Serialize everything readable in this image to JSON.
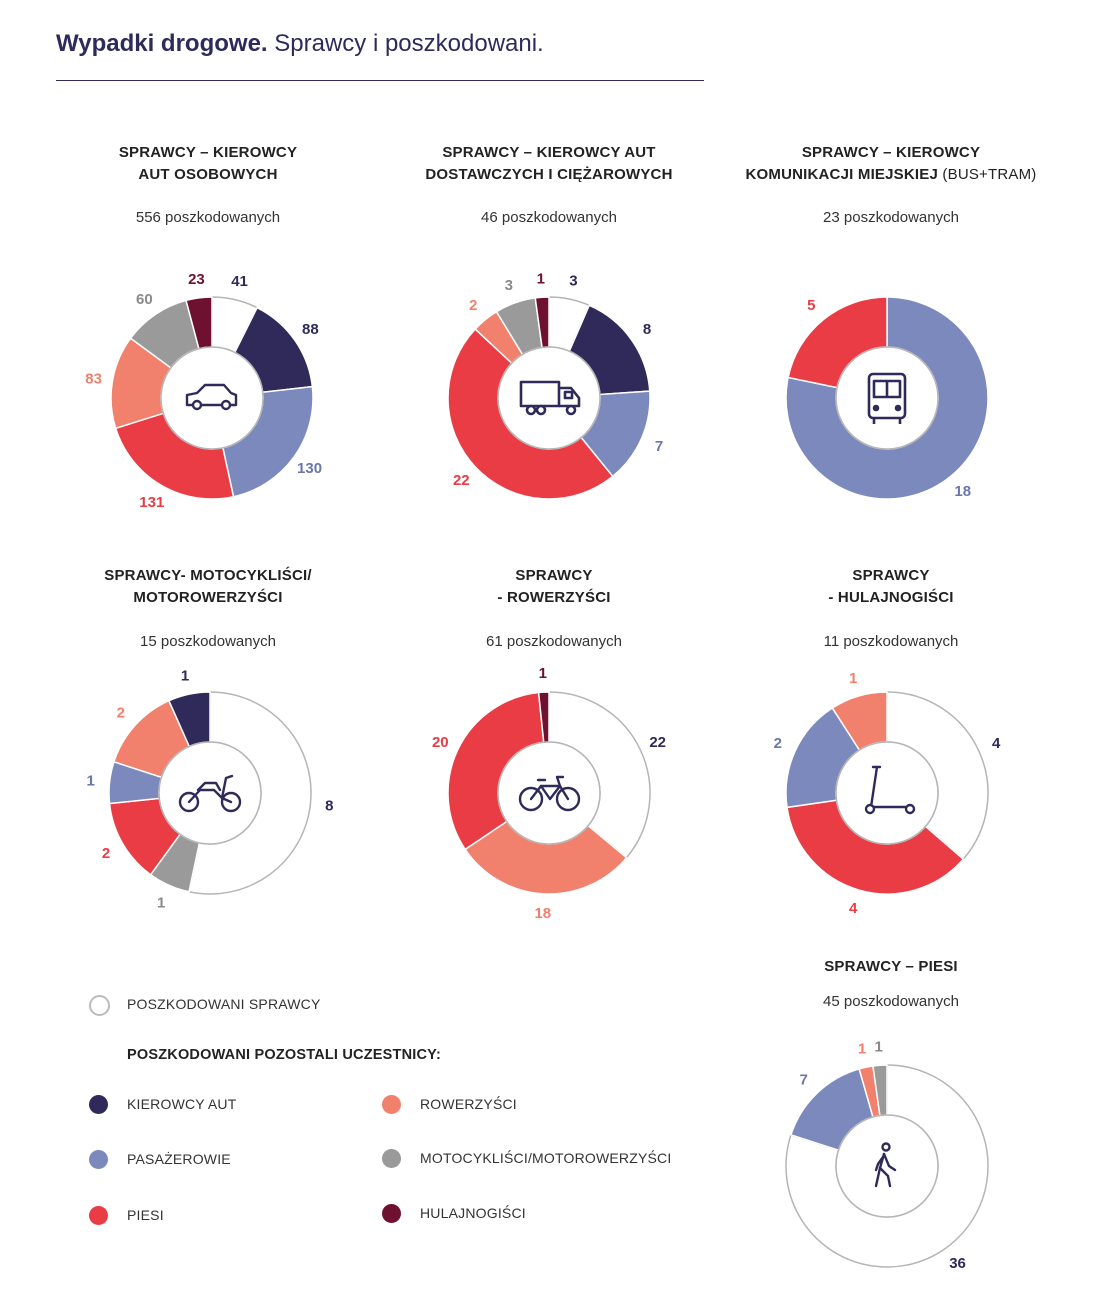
{
  "header": {
    "title_bold": "Wypadki drogowe.",
    "title_rest": " Sprawcy i poszkodowani."
  },
  "colors": {
    "sprawcy": "#ffffff",
    "kierowcy": "#2f2a59",
    "pasazerowie": "#7c89bd",
    "piesi": "#e93c45",
    "rowerzysci": "#f1806c",
    "motocyklisci": "#9a9a9b",
    "hulajnogisci": "#6e1030"
  },
  "chart_data": [
    {
      "type": "pie",
      "title_lines": [
        "SPRAWCY – KIEROWCY",
        "AUT OSOBOWYCH"
      ],
      "subtitle": "556 poszkodowanych",
      "icon": "car-icon",
      "slices": [
        {
          "category": "sprawcy",
          "value": 41
        },
        {
          "category": "kierowcy",
          "value": 88
        },
        {
          "category": "pasazerowie",
          "value": 130
        },
        {
          "category": "piesi",
          "value": 131
        },
        {
          "category": "rowerzysci",
          "value": 83
        },
        {
          "category": "motocyklisci",
          "value": 60
        },
        {
          "category": "hulajnogisci",
          "value": 23
        }
      ]
    },
    {
      "type": "pie",
      "title_lines": [
        "SPRAWCY – KIEROWCY AUT",
        "DOSTAWCZYCH I CIĘŻAROWYCH"
      ],
      "subtitle": "46 poszkodowanych",
      "icon": "truck-icon",
      "slices": [
        {
          "category": "sprawcy",
          "value": 3
        },
        {
          "category": "kierowcy",
          "value": 8
        },
        {
          "category": "pasazerowie",
          "value": 7
        },
        {
          "category": "piesi",
          "value": 22
        },
        {
          "category": "rowerzysci",
          "value": 2
        },
        {
          "category": "motocyklisci",
          "value": 3
        },
        {
          "category": "hulajnogisci",
          "value": 1
        }
      ]
    },
    {
      "type": "pie",
      "title_lines": [
        "SPRAWCY – KIEROWCY",
        "KOMUNIKACJI MIEJSKIEJ"
      ],
      "title_suffix": " (BUS+TRAM)",
      "subtitle": "23 poszkodowanych",
      "icon": "bus-icon",
      "slices": [
        {
          "category": "pasazerowie",
          "value": 18
        },
        {
          "category": "piesi",
          "value": 5
        }
      ]
    },
    {
      "type": "pie",
      "title_lines": [
        "SPRAWCY- MOTOCYKLIŚCI/",
        "MOTOROWERZYŚCI"
      ],
      "subtitle": "15 poszkodowanych",
      "icon": "motorcycle-icon",
      "slices": [
        {
          "category": "sprawcy",
          "value": 8
        },
        {
          "category": "motocyklisci",
          "value": 1
        },
        {
          "category": "piesi",
          "value": 2
        },
        {
          "category": "pasazerowie",
          "value": 1
        },
        {
          "category": "rowerzysci",
          "value": 2
        },
        {
          "category": "kierowcy",
          "value": 1
        }
      ]
    },
    {
      "type": "pie",
      "title_lines": [
        "SPRAWCY",
        "- ROWERZYŚCI"
      ],
      "subtitle": "61 poszkodowanych",
      "icon": "bicycle-icon",
      "slices": [
        {
          "category": "sprawcy",
          "value": 22
        },
        {
          "category": "rowerzysci",
          "value": 18
        },
        {
          "category": "piesi",
          "value": 20
        },
        {
          "category": "hulajnogisci",
          "value": 1
        }
      ]
    },
    {
      "type": "pie",
      "title_lines": [
        "SPRAWCY",
        "- HULAJNOGIŚCI"
      ],
      "subtitle": "11 poszkodowanych",
      "icon": "scooter-icon",
      "slices": [
        {
          "category": "sprawcy",
          "value": 4
        },
        {
          "category": "piesi",
          "value": 4
        },
        {
          "category": "pasazerowie",
          "value": 2
        },
        {
          "category": "rowerzysci",
          "value": 1
        }
      ]
    },
    {
      "type": "pie",
      "title_lines": [
        "SPRAWCY – PIESI"
      ],
      "subtitle": "45 poszkodowanych",
      "icon": "pedestrian-icon",
      "slices": [
        {
          "category": "sprawcy",
          "value": 36
        },
        {
          "category": "pasazerowie",
          "value": 7
        },
        {
          "category": "rowerzysci",
          "value": 1
        },
        {
          "category": "motocyklisci",
          "value": 1
        }
      ]
    }
  ],
  "legend": {
    "sprawcy_label": "POSZKODOWANI SPRAWCY",
    "others_heading": "POSZKODOWANI POZOSTALI UCZESTNICY:",
    "items": [
      {
        "category": "kierowcy",
        "label": "KIEROWCY AUT"
      },
      {
        "category": "pasazerowie",
        "label": "PASAŻEROWIE"
      },
      {
        "category": "piesi",
        "label": "PIESI"
      },
      {
        "category": "rowerzysci",
        "label": "ROWERZYŚCI"
      },
      {
        "category": "motocyklisci",
        "label": "MOTOCYKLIŚCI/MOTOROWERZYŚCI"
      },
      {
        "category": "hulajnogisci",
        "label": "HULAJNOGIŚCI"
      }
    ]
  }
}
